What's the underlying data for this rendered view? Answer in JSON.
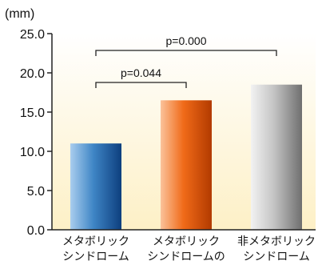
{
  "chart_data": {
    "type": "bar",
    "unit_label": "(mm)",
    "categories": [
      [
        "メタボリック",
        "シンドローム"
      ],
      [
        "メタボリック",
        "シンドロームの"
      ],
      [
        "非メタボリック",
        "シンドローム"
      ]
    ],
    "values": [
      11.0,
      16.5,
      18.5
    ],
    "ylim": [
      0,
      25
    ],
    "yticks": [
      "0.0",
      "5.0",
      "10.0",
      "15.0",
      "20.0",
      "25.0"
    ],
    "ytick_values": [
      0,
      5,
      10,
      15,
      20,
      25
    ],
    "comparisons": [
      {
        "from": 0,
        "to": 1,
        "label": "p=0.044"
      },
      {
        "from": 0,
        "to": 2,
        "label": "p=0.000"
      }
    ],
    "bar_colors": [
      {
        "light": "#a9cdee",
        "mid": "#3f86c6",
        "dark": "#0d3f7e"
      },
      {
        "light": "#fbc29a",
        "mid": "#f06a18",
        "dark": "#b23a00"
      },
      {
        "light": "#f2f2f2",
        "mid": "#c4c4c4",
        "dark": "#6f6f6f"
      }
    ],
    "plot_background": [
      "#ffffff",
      "#fdf0c6"
    ]
  }
}
